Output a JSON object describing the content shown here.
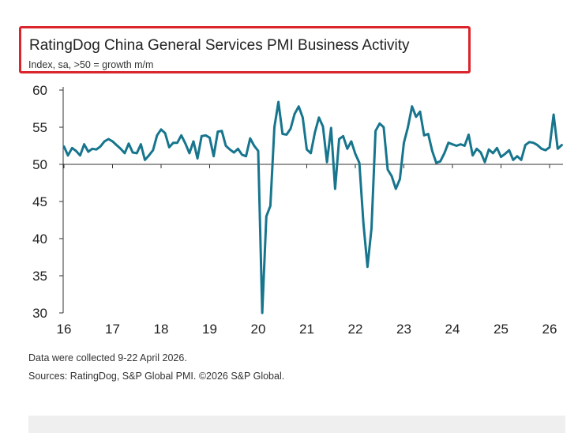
{
  "chart_data": {
    "type": "line",
    "title": "RatingDog China General Services PMI Business Activity",
    "subtitle": "Index, sa, >50 = growth m/m",
    "xlabel": "",
    "ylabel": "",
    "ylim": [
      30,
      60
    ],
    "yticks": [
      60,
      55,
      50,
      45,
      40,
      35,
      30
    ],
    "xticks": [
      "16",
      "17",
      "18",
      "19",
      "20",
      "21",
      "22",
      "23",
      "24",
      "25",
      "26"
    ],
    "x_start": "2016-01",
    "frequency": "monthly",
    "reference_line": 50,
    "grid": false,
    "legend": "none",
    "series": [
      {
        "color": "#17758d",
        "values": [
          52.4,
          51.2,
          52.2,
          51.8,
          51.2,
          52.7,
          51.7,
          52.1,
          52.0,
          52.4,
          53.1,
          53.4,
          53.1,
          52.6,
          52.1,
          51.5,
          52.8,
          51.6,
          51.5,
          52.7,
          50.6,
          51.2,
          51.9,
          53.9,
          54.7,
          54.2,
          52.3,
          52.9,
          52.9,
          53.9,
          52.8,
          51.5,
          53.1,
          50.8,
          53.8,
          53.9,
          53.6,
          51.1,
          54.4,
          54.5,
          52.5,
          52.0,
          51.6,
          52.1,
          51.3,
          51.1,
          53.5,
          52.5,
          51.8,
          26.5,
          43.0,
          44.4,
          55.0,
          58.4,
          54.1,
          54.0,
          54.8,
          56.8,
          57.8,
          56.3,
          52.0,
          51.5,
          54.3,
          56.3,
          55.1,
          50.3,
          54.9,
          46.7,
          53.4,
          53.8,
          52.1,
          53.1,
          51.4,
          50.2,
          42.0,
          36.2,
          41.4,
          54.5,
          55.5,
          55.0,
          49.3,
          48.4,
          46.7,
          48.0,
          52.9,
          55.0,
          57.8,
          56.4,
          57.1,
          53.9,
          54.1,
          51.8,
          50.2,
          50.4,
          51.5,
          52.9,
          52.7,
          52.5,
          52.7,
          52.5,
          54.0,
          51.2,
          52.1,
          51.6,
          50.3,
          52.0,
          51.5,
          52.2,
          51.0,
          51.4,
          51.9,
          50.6,
          51.1,
          50.6,
          52.6,
          53.0,
          52.9,
          52.6,
          52.1,
          51.9,
          52.3,
          56.7,
          52.1,
          52.6
        ]
      }
    ]
  },
  "notes": {
    "collected": "Data were collected 9-22 April 2026.",
    "sources": "Sources: RatingDog, S&P Global PMI. ©2026 S&P Global."
  }
}
